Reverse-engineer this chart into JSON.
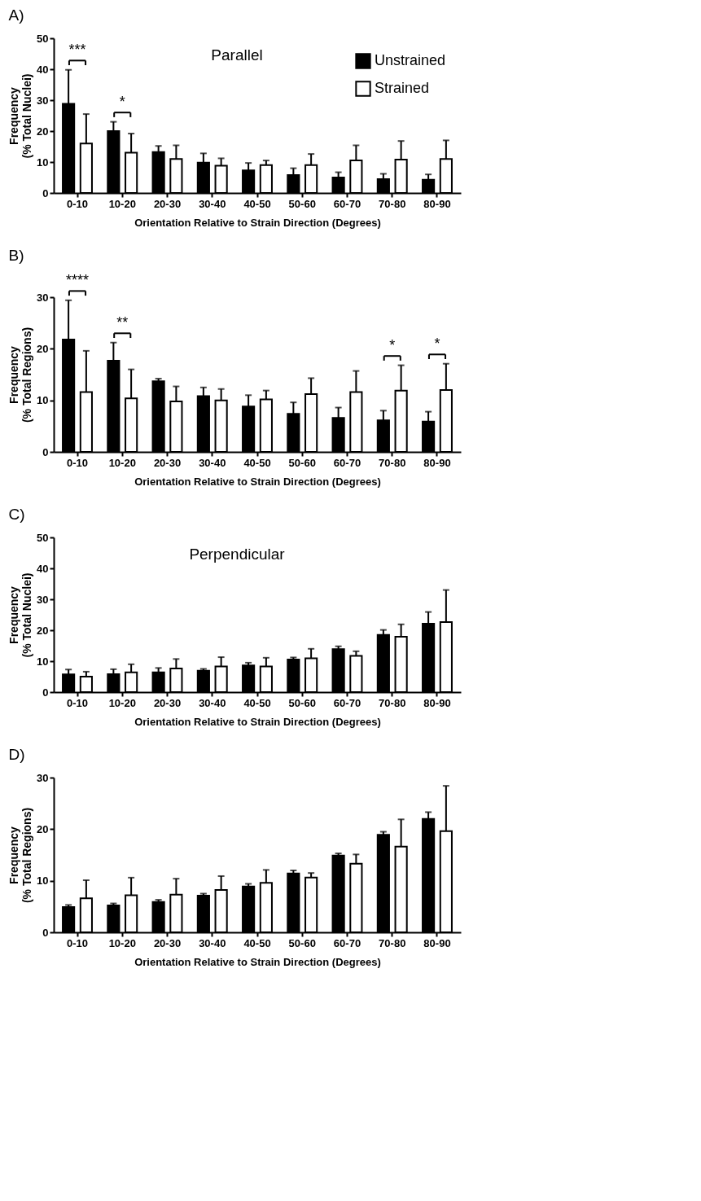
{
  "chart_data": [
    {
      "type": "bar",
      "title": "Parallel",
      "xlabel": "Orientation Relative to Strain Direction (Degrees)",
      "ylabel": "Frequency\n(% Total Nuclei)",
      "categories": [
        "0-10",
        "10-20",
        "20-30",
        "30-40",
        "40-50",
        "50-60",
        "60-70",
        "70-80",
        "80-90"
      ],
      "ylim": [
        0,
        50
      ],
      "yticks": [
        0,
        10,
        20,
        30,
        40,
        50
      ],
      "grid": false,
      "legend": "top right",
      "series": [
        {
          "name": "Unstrained",
          "color": "#000000",
          "values": [
            28.8,
            20,
            13.2,
            9.8,
            7.3,
            5.8,
            5,
            4.5,
            4.3
          ],
          "errors": [
            [
              28.8,
              39.8
            ],
            [
              20,
              23
            ],
            [
              13.2,
              15.2
            ],
            [
              9.8,
              12.8
            ],
            [
              7.3,
              9.7
            ],
            [
              5.8,
              8
            ],
            [
              5,
              6.7
            ],
            [
              4.5,
              6.2
            ],
            [
              4.3,
              6
            ]
          ]
        },
        {
          "name": "Strained",
          "color": "#ffffff",
          "values": [
            16,
            13,
            11,
            8.8,
            9,
            9,
            10.5,
            10.8,
            11
          ],
          "errors": [
            [
              16,
              25.5
            ],
            [
              13,
              19.2
            ],
            [
              11,
              15.4
            ],
            [
              8.8,
              11.2
            ],
            [
              9,
              10.5
            ],
            [
              9,
              12.6
            ],
            [
              10.5,
              15.4
            ],
            [
              10.8,
              16.8
            ],
            [
              11,
              17
            ]
          ]
        }
      ],
      "annotations": [
        "A)",
        "***",
        "*"
      ]
    },
    {
      "type": "bar",
      "xlabel": "Orientation Relative to Strain Direction (Degrees)",
      "ylabel": "Frequency\n(% Total Regions)",
      "categories": [
        "0-10",
        "10-20",
        "20-30",
        "30-40",
        "40-50",
        "50-60",
        "60-70",
        "70-80",
        "80-90"
      ],
      "ylim": [
        0,
        30
      ],
      "yticks": [
        0,
        10,
        20,
        30
      ],
      "grid": false,
      "legend": false,
      "series": [
        {
          "color": "#000000",
          "values": [
            21.8,
            17.7,
            13.7,
            10.8,
            8.8,
            7.4,
            6.6,
            6.1,
            5.9
          ],
          "errors": [
            [
              21.8,
              29.4
            ],
            [
              17.7,
              21.2
            ],
            [
              13.7,
              14.2
            ],
            [
              10.8,
              12.5
            ],
            [
              8.8,
              11
            ],
            [
              7.4,
              9.6
            ],
            [
              6.6,
              8.6
            ],
            [
              6.1,
              8
            ],
            [
              5.9,
              7.8
            ]
          ]
        },
        {
          "color": "#ffffff",
          "values": [
            11.6,
            10.4,
            9.8,
            10,
            10.2,
            11.2,
            11.6,
            11.9,
            12
          ],
          "errors": [
            [
              11.6,
              19.6
            ],
            [
              10.4,
              16
            ],
            [
              9.8,
              12.7
            ],
            [
              10,
              12.2
            ],
            [
              10.2,
              11.9
            ],
            [
              11.2,
              14.3
            ],
            [
              11.6,
              15.7
            ],
            [
              11.9,
              16.8
            ],
            [
              12,
              17.1
            ]
          ]
        }
      ],
      "annotations": [
        "B)",
        "****",
        "**",
        "*",
        "*"
      ]
    },
    {
      "type": "bar",
      "title": "Perpendicular",
      "xlabel": "Orientation Relative to Strain Direction (Degrees)",
      "ylabel": "Frequency\n(% Total Nuclei)",
      "categories": [
        "0-10",
        "10-20",
        "20-30",
        "30-40",
        "40-50",
        "50-60",
        "60-70",
        "70-80",
        "80-90"
      ],
      "ylim": [
        0,
        50
      ],
      "yticks": [
        0,
        10,
        20,
        30,
        40,
        50
      ],
      "grid": false,
      "legend": false,
      "series": [
        {
          "color": "#000000",
          "values": [
            5.7,
            5.8,
            6.4,
            6.9,
            8.6,
            10.5,
            13.9,
            18.5,
            22.1
          ],
          "errors": [
            [
              5.7,
              7.3
            ],
            [
              5.8,
              7.4
            ],
            [
              6.4,
              7.8
            ],
            [
              6.9,
              7.5
            ],
            [
              8.6,
              9.5
            ],
            [
              10.5,
              11.2
            ],
            [
              13.9,
              14.8
            ],
            [
              18.5,
              20.1
            ],
            [
              22.1,
              25.9
            ]
          ]
        },
        {
          "color": "#ffffff",
          "values": [
            5,
            6.4,
            7.6,
            8.3,
            8.3,
            10.9,
            11.7,
            17.9,
            22.6
          ],
          "errors": [
            [
              5,
              6.6
            ],
            [
              6.4,
              9
            ],
            [
              7.6,
              10.7
            ],
            [
              8.3,
              11.3
            ],
            [
              8.3,
              11.1
            ],
            [
              10.9,
              14
            ],
            [
              11.7,
              13.2
            ],
            [
              17.9,
              21.9
            ],
            [
              22.6,
              33
            ]
          ]
        }
      ],
      "annotations": [
        "C)"
      ]
    },
    {
      "type": "bar",
      "xlabel": "Orientation Relative to Strain Direction (Degrees)",
      "ylabel": "Frequency\n(% Total Regions)",
      "categories": [
        "0-10",
        "10-20",
        "20-30",
        "30-40",
        "40-50",
        "50-60",
        "60-70",
        "70-80",
        "80-90"
      ],
      "ylim": [
        0,
        30
      ],
      "yticks": [
        0,
        10,
        20,
        30
      ],
      "grid": false,
      "legend": false,
      "series": [
        {
          "color": "#000000",
          "values": [
            4.9,
            5.2,
            5.9,
            7.1,
            8.9,
            11.4,
            14.9,
            18.9,
            22
          ],
          "errors": [
            [
              4.9,
              5.3
            ],
            [
              5.2,
              5.6
            ],
            [
              5.9,
              6.3
            ],
            [
              7.1,
              7.5
            ],
            [
              8.9,
              9.4
            ],
            [
              11.4,
              12
            ],
            [
              14.9,
              15.3
            ],
            [
              18.9,
              19.5
            ],
            [
              22,
              23.3
            ]
          ]
        },
        {
          "color": "#ffffff",
          "values": [
            6.6,
            7.2,
            7.3,
            8.2,
            9.6,
            10.6,
            13.3,
            16.6,
            19.6
          ],
          "errors": [
            [
              6.6,
              10.1
            ],
            [
              7.2,
              10.6
            ],
            [
              7.3,
              10.4
            ],
            [
              8.2,
              10.9
            ],
            [
              9.6,
              12.1
            ],
            [
              10.6,
              11.5
            ],
            [
              13.3,
              15.1
            ],
            [
              16.6,
              21.9
            ],
            [
              19.6,
              28.4
            ]
          ]
        }
      ],
      "annotations": [
        "D)"
      ]
    }
  ]
}
